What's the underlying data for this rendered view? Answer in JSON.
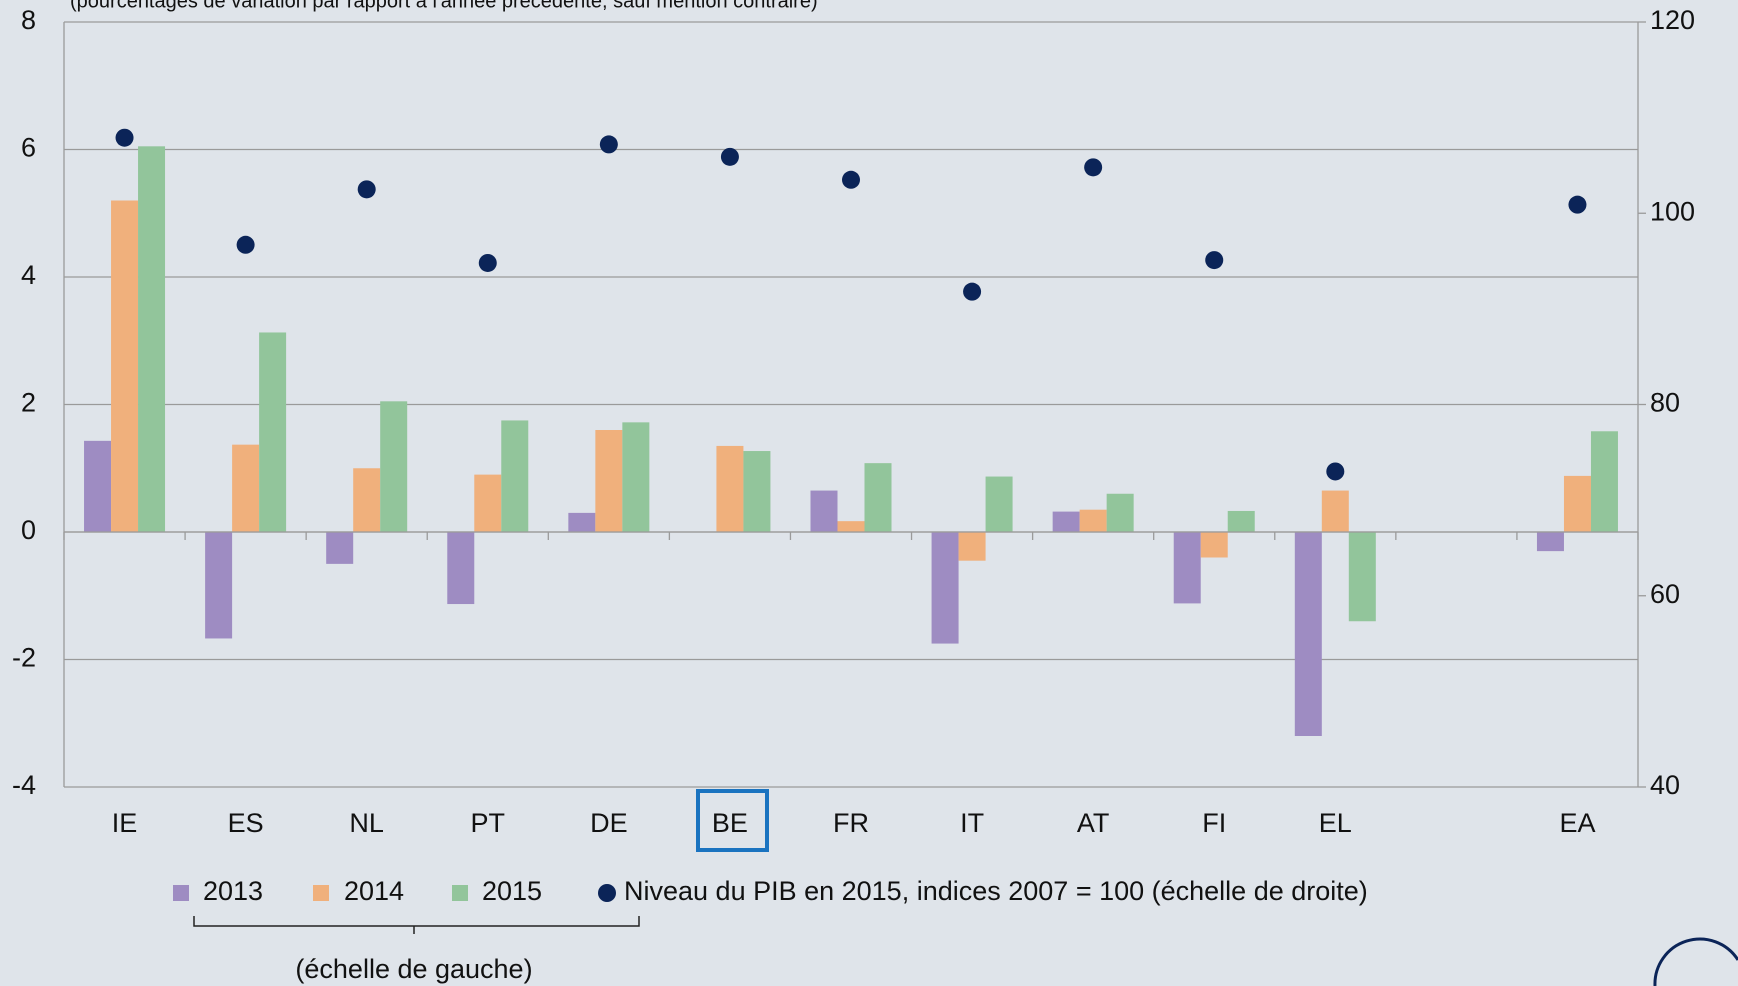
{
  "chart_data": {
    "type": "bar",
    "subtitle": "(pourcentages de variation par rapport à l'année précédente, sauf mention contraire)",
    "categories": [
      "IE",
      "ES",
      "NL",
      "PT",
      "DE",
      "BE",
      "FR",
      "IT",
      "AT",
      "FI",
      "EL",
      null,
      "EA"
    ],
    "series": [
      {
        "name": "2013",
        "color": "#9e8cc2",
        "values": [
          1.43,
          -1.67,
          -0.5,
          -1.13,
          0.3,
          0,
          0.65,
          -1.75,
          0.32,
          -1.12,
          -3.2,
          null,
          -0.3
        ]
      },
      {
        "name": "2014",
        "color": "#f0b07c",
        "values": [
          5.2,
          1.37,
          1.0,
          0.9,
          1.6,
          1.35,
          0.17,
          -0.45,
          0.35,
          -0.4,
          0.65,
          null,
          0.88
        ]
      },
      {
        "name": "2015",
        "color": "#92c59b",
        "values": [
          6.05,
          3.13,
          2.05,
          1.75,
          1.72,
          1.27,
          1.08,
          0.87,
          0.6,
          0.33,
          -1.4,
          null,
          1.58
        ]
      },
      {
        "name": "Niveau du PIB en 2015, indices 2007 = 100 (échelle de droite)",
        "type": "scatter",
        "axis": "y2",
        "color": "#0b2458",
        "values": [
          107.9,
          96.7,
          102.5,
          94.8,
          107.2,
          105.9,
          103.5,
          91.8,
          104.8,
          95.1,
          73.0,
          null,
          100.9
        ]
      }
    ],
    "annotation": "(échelle de gauche)",
    "ylim": [
      -4,
      8
    ],
    "yticks": [
      -4,
      -2,
      0,
      2,
      4,
      6,
      8
    ],
    "y2lim": [
      40,
      120
    ],
    "y2ticks": [
      40,
      60,
      80,
      100,
      120
    ],
    "grid": true
  }
}
